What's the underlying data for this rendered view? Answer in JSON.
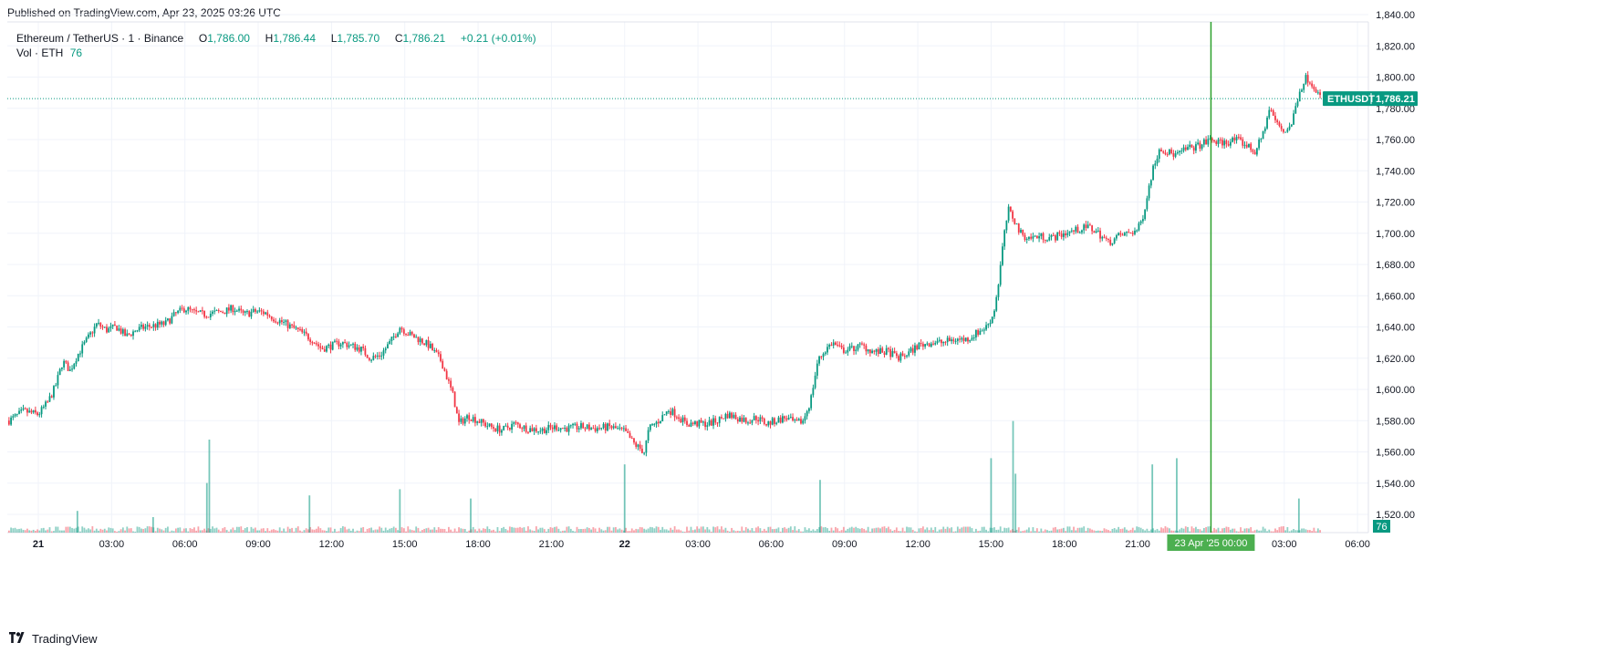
{
  "header": {
    "published": "Published on TradingView.com, Apr 23, 2025 03:26 UTC"
  },
  "legend": {
    "symbol": "Ethereum / TetherUS · 1 · Binance",
    "open_label": "O",
    "open": "1,786.00",
    "high_label": "H",
    "high": "1,786.44",
    "low_label": "L",
    "low": "1,785.70",
    "close_label": "C",
    "close": "1,786.21",
    "change": "+0.21 (+0.01%)",
    "volume_label": "Vol · ETH",
    "volume": "76"
  },
  "chart_data": {
    "type": "candlestick",
    "title": "Ethereum / TetherUS · 1 · Binance",
    "y_ticks": [
      "1,520.00",
      "1,540.00",
      "1,560.00",
      "1,580.00",
      "1,600.00",
      "1,620.00",
      "1,640.00",
      "1,660.00",
      "1,680.00",
      "1,700.00",
      "1,720.00",
      "1,740.00",
      "1,760.00",
      "1,780.00",
      "1,800.00",
      "1,820.00",
      "1,840.00"
    ],
    "y_tick_values": [
      1520,
      1540,
      1560,
      1580,
      1600,
      1620,
      1640,
      1660,
      1680,
      1700,
      1720,
      1740,
      1760,
      1780,
      1800,
      1820,
      1840
    ],
    "x_ticks": [
      "21",
      "03:00",
      "06:00",
      "09:00",
      "12:00",
      "15:00",
      "18:00",
      "21:00",
      "22",
      "03:00",
      "06:00",
      "09:00",
      "12:00",
      "15:00",
      "18:00",
      "21:00",
      "03:00",
      "06:00"
    ],
    "x_tick_hours": [
      0,
      3,
      6,
      9,
      12,
      15,
      18,
      21,
      24,
      27,
      30,
      33,
      36,
      39,
      42,
      45,
      51,
      54
    ],
    "crosshair_label": "23 Apr '25   00:00",
    "crosshair_hour": 48,
    "price_line": {
      "symbol": "ETHUSDT",
      "value": 1786.21,
      "label": "1,786.21"
    },
    "volume_badge": "76",
    "up_color": "#089981",
    "down_color": "#f23645",
    "crosshair_color": "#2ca02c",
    "close_series": [
      [
        -1.2,
        1580
      ],
      [
        -0.6,
        1586
      ],
      [
        0,
        1584
      ],
      [
        0.4,
        1592
      ],
      [
        0.7,
        1602
      ],
      [
        1.0,
        1618
      ],
      [
        1.3,
        1612
      ],
      [
        1.6,
        1622
      ],
      [
        2.0,
        1632
      ],
      [
        2.4,
        1642
      ],
      [
        2.8,
        1638
      ],
      [
        3.2,
        1640
      ],
      [
        3.6,
        1634
      ],
      [
        4.0,
        1638
      ],
      [
        4.4,
        1640
      ],
      [
        4.8,
        1641
      ],
      [
        5.2,
        1642
      ],
      [
        5.6,
        1648
      ],
      [
        6.0,
        1652
      ],
      [
        6.4,
        1649
      ],
      [
        6.8,
        1648
      ],
      [
        7.2,
        1649
      ],
      [
        7.6,
        1650
      ],
      [
        8.0,
        1652
      ],
      [
        8.4,
        1648
      ],
      [
        8.9,
        1650
      ],
      [
        9.3,
        1649
      ],
      [
        9.7,
        1645
      ],
      [
        10.0,
        1643
      ],
      [
        10.6,
        1638
      ],
      [
        11.2,
        1632
      ],
      [
        11.6,
        1626
      ],
      [
        12.0,
        1628
      ],
      [
        12.4,
        1630
      ],
      [
        12.8,
        1628
      ],
      [
        13.2,
        1626
      ],
      [
        13.6,
        1620
      ],
      [
        14.0,
        1622
      ],
      [
        14.4,
        1630
      ],
      [
        14.8,
        1640
      ],
      [
        15.2,
        1635
      ],
      [
        15.6,
        1632
      ],
      [
        16.0,
        1628
      ],
      [
        16.5,
        1618
      ],
      [
        17.0,
        1595
      ],
      [
        17.2,
        1578
      ],
      [
        17.6,
        1583
      ],
      [
        18.0,
        1580
      ],
      [
        18.5,
        1576
      ],
      [
        19.0,
        1574
      ],
      [
        19.5,
        1578
      ],
      [
        20.0,
        1575
      ],
      [
        20.6,
        1574
      ],
      [
        21.2,
        1576
      ],
      [
        21.6,
        1575
      ],
      [
        22.2,
        1576
      ],
      [
        22.8,
        1575
      ],
      [
        23.4,
        1576
      ],
      [
        24.0,
        1573
      ],
      [
        24.4,
        1565
      ],
      [
        24.8,
        1560
      ],
      [
        25.0,
        1575
      ],
      [
        25.4,
        1580
      ],
      [
        25.8,
        1587
      ],
      [
        26.2,
        1583
      ],
      [
        26.5,
        1578
      ],
      [
        27.0,
        1578
      ],
      [
        27.4,
        1578
      ],
      [
        27.8,
        1580
      ],
      [
        28.2,
        1584
      ],
      [
        28.6,
        1582
      ],
      [
        29.0,
        1580
      ],
      [
        29.4,
        1582
      ],
      [
        29.8,
        1578
      ],
      [
        30.2,
        1580
      ],
      [
        30.6,
        1582
      ],
      [
        31.0,
        1578
      ],
      [
        31.3,
        1580
      ],
      [
        31.6,
        1592
      ],
      [
        31.9,
        1618
      ],
      [
        32.2,
        1625
      ],
      [
        32.5,
        1630
      ],
      [
        32.9,
        1625
      ],
      [
        33.3,
        1626
      ],
      [
        33.7,
        1628
      ],
      [
        34.2,
        1624
      ],
      [
        34.8,
        1624
      ],
      [
        35.2,
        1620
      ],
      [
        35.6,
        1623
      ],
      [
        36.0,
        1628
      ],
      [
        36.5,
        1630
      ],
      [
        37.0,
        1630
      ],
      [
        37.5,
        1632
      ],
      [
        38.0,
        1632
      ],
      [
        38.4,
        1636
      ],
      [
        38.8,
        1640
      ],
      [
        39.1,
        1648
      ],
      [
        39.3,
        1668
      ],
      [
        39.5,
        1695
      ],
      [
        39.7,
        1715
      ],
      [
        39.9,
        1710
      ],
      [
        40.2,
        1700
      ],
      [
        40.5,
        1697
      ],
      [
        41.0,
        1698
      ],
      [
        41.5,
        1697
      ],
      [
        42.0,
        1700
      ],
      [
        42.5,
        1702
      ],
      [
        43.0,
        1704
      ],
      [
        43.4,
        1700
      ],
      [
        43.8,
        1694
      ],
      [
        44.2,
        1698
      ],
      [
        44.6,
        1700
      ],
      [
        45.0,
        1702
      ],
      [
        45.2,
        1710
      ],
      [
        45.4,
        1725
      ],
      [
        45.6,
        1740
      ],
      [
        45.9,
        1755
      ],
      [
        46.2,
        1752
      ],
      [
        46.6,
        1750
      ],
      [
        47.0,
        1754
      ],
      [
        47.5,
        1756
      ],
      [
        48.0,
        1760
      ],
      [
        48.3,
        1758
      ],
      [
        48.6,
        1758
      ],
      [
        49.0,
        1760
      ],
      [
        49.4,
        1757
      ],
      [
        49.8,
        1752
      ],
      [
        50.1,
        1762
      ],
      [
        50.4,
        1780
      ],
      [
        50.7,
        1770
      ],
      [
        51.0,
        1765
      ],
      [
        51.3,
        1770
      ],
      [
        51.6,
        1790
      ],
      [
        51.9,
        1800
      ],
      [
        52.2,
        1795
      ],
      [
        52.5,
        1786
      ]
    ],
    "volume_spikes": [
      [
        1.6,
        14
      ],
      [
        4.7,
        10
      ],
      [
        6.9,
        32
      ],
      [
        7.0,
        60
      ],
      [
        11.1,
        24
      ],
      [
        14.8,
        28
      ],
      [
        17.7,
        22
      ],
      [
        24.0,
        44
      ],
      [
        32.0,
        34
      ],
      [
        39.0,
        48
      ],
      [
        39.9,
        72
      ],
      [
        40.0,
        38
      ],
      [
        45.6,
        44
      ],
      [
        46.6,
        48
      ],
      [
        51.6,
        22
      ]
    ]
  }
}
